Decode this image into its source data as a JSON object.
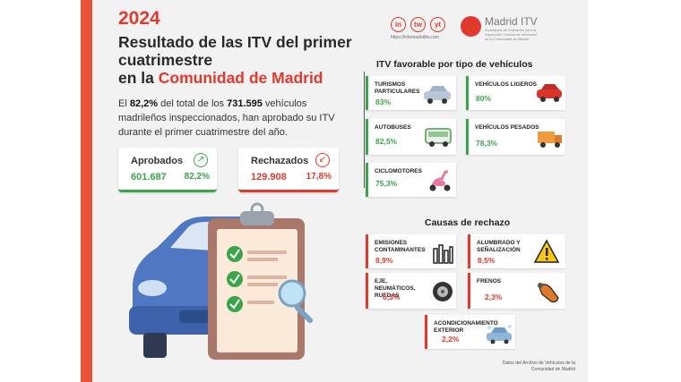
{
  "header": {
    "year": "2024",
    "title_line1": "Resultado de las ITV del primer",
    "title_line2": "cuatrimestre",
    "title_line3_prefix": "en la ",
    "title_line3_highlight": "Comunidad de Madrid"
  },
  "intro": {
    "prefix": "El ",
    "pct": "82,2%",
    "middle": " del total de los ",
    "count": "731.595",
    "suffix": " vehículos madrileños inspeccionados, han aprobado su ITV durante el primer cuatrimestre del año."
  },
  "kpis": {
    "approved": {
      "label": "Aprobados",
      "value": "601.687",
      "pct": "82,2%"
    },
    "rejected": {
      "label": "Rechazados",
      "value": "129.908",
      "pct": "17,8%"
    }
  },
  "brand": {
    "social": [
      "in",
      "tw",
      "yt"
    ],
    "url": "https://infomadriditv.com",
    "logo_text": "Madrid ITV",
    "logo_sub": "Asociación de Entidades para la Inspección Técnica de Vehículos de la Comunidad de Madrid"
  },
  "favorable": {
    "heading": "ITV favorable por tipo de vehículos",
    "items": [
      {
        "name": "TURISMOS PARTICULARES",
        "pct": "83%"
      },
      {
        "name": "VEHÍCULOS LIGEROS",
        "pct": "80%"
      },
      {
        "name": "AUTOBUSES",
        "pct": "82,5%"
      },
      {
        "name": "VEHÍCULOS PESADOS",
        "pct": "78,3%"
      },
      {
        "name": "CICLOMOTORES",
        "pct": "75,3%"
      }
    ]
  },
  "rejection": {
    "heading": "Causas de rechazo",
    "items": [
      {
        "name": "EMISIONES CONTAMINANTES",
        "pct": "8,9%"
      },
      {
        "name": "ALUMBRADO Y SEÑALIZACIÓN",
        "pct": "8,5%"
      },
      {
        "name": "EJE, NEUMÁTICOS, RUEDAS",
        "pct": "6,3%"
      },
      {
        "name": "FRENOS",
        "pct": "2,3%"
      },
      {
        "name": "ACONDICIONAMIENTO EXTERIOR",
        "pct": "2,2%"
      }
    ]
  },
  "footnote": "Datos del Archivo de Vehículos de la Comunidad de Madrid",
  "colors": {
    "accent_red": "#e03a2f",
    "accent_green": "#3aa44a",
    "car_blue": "#4f77c2"
  }
}
